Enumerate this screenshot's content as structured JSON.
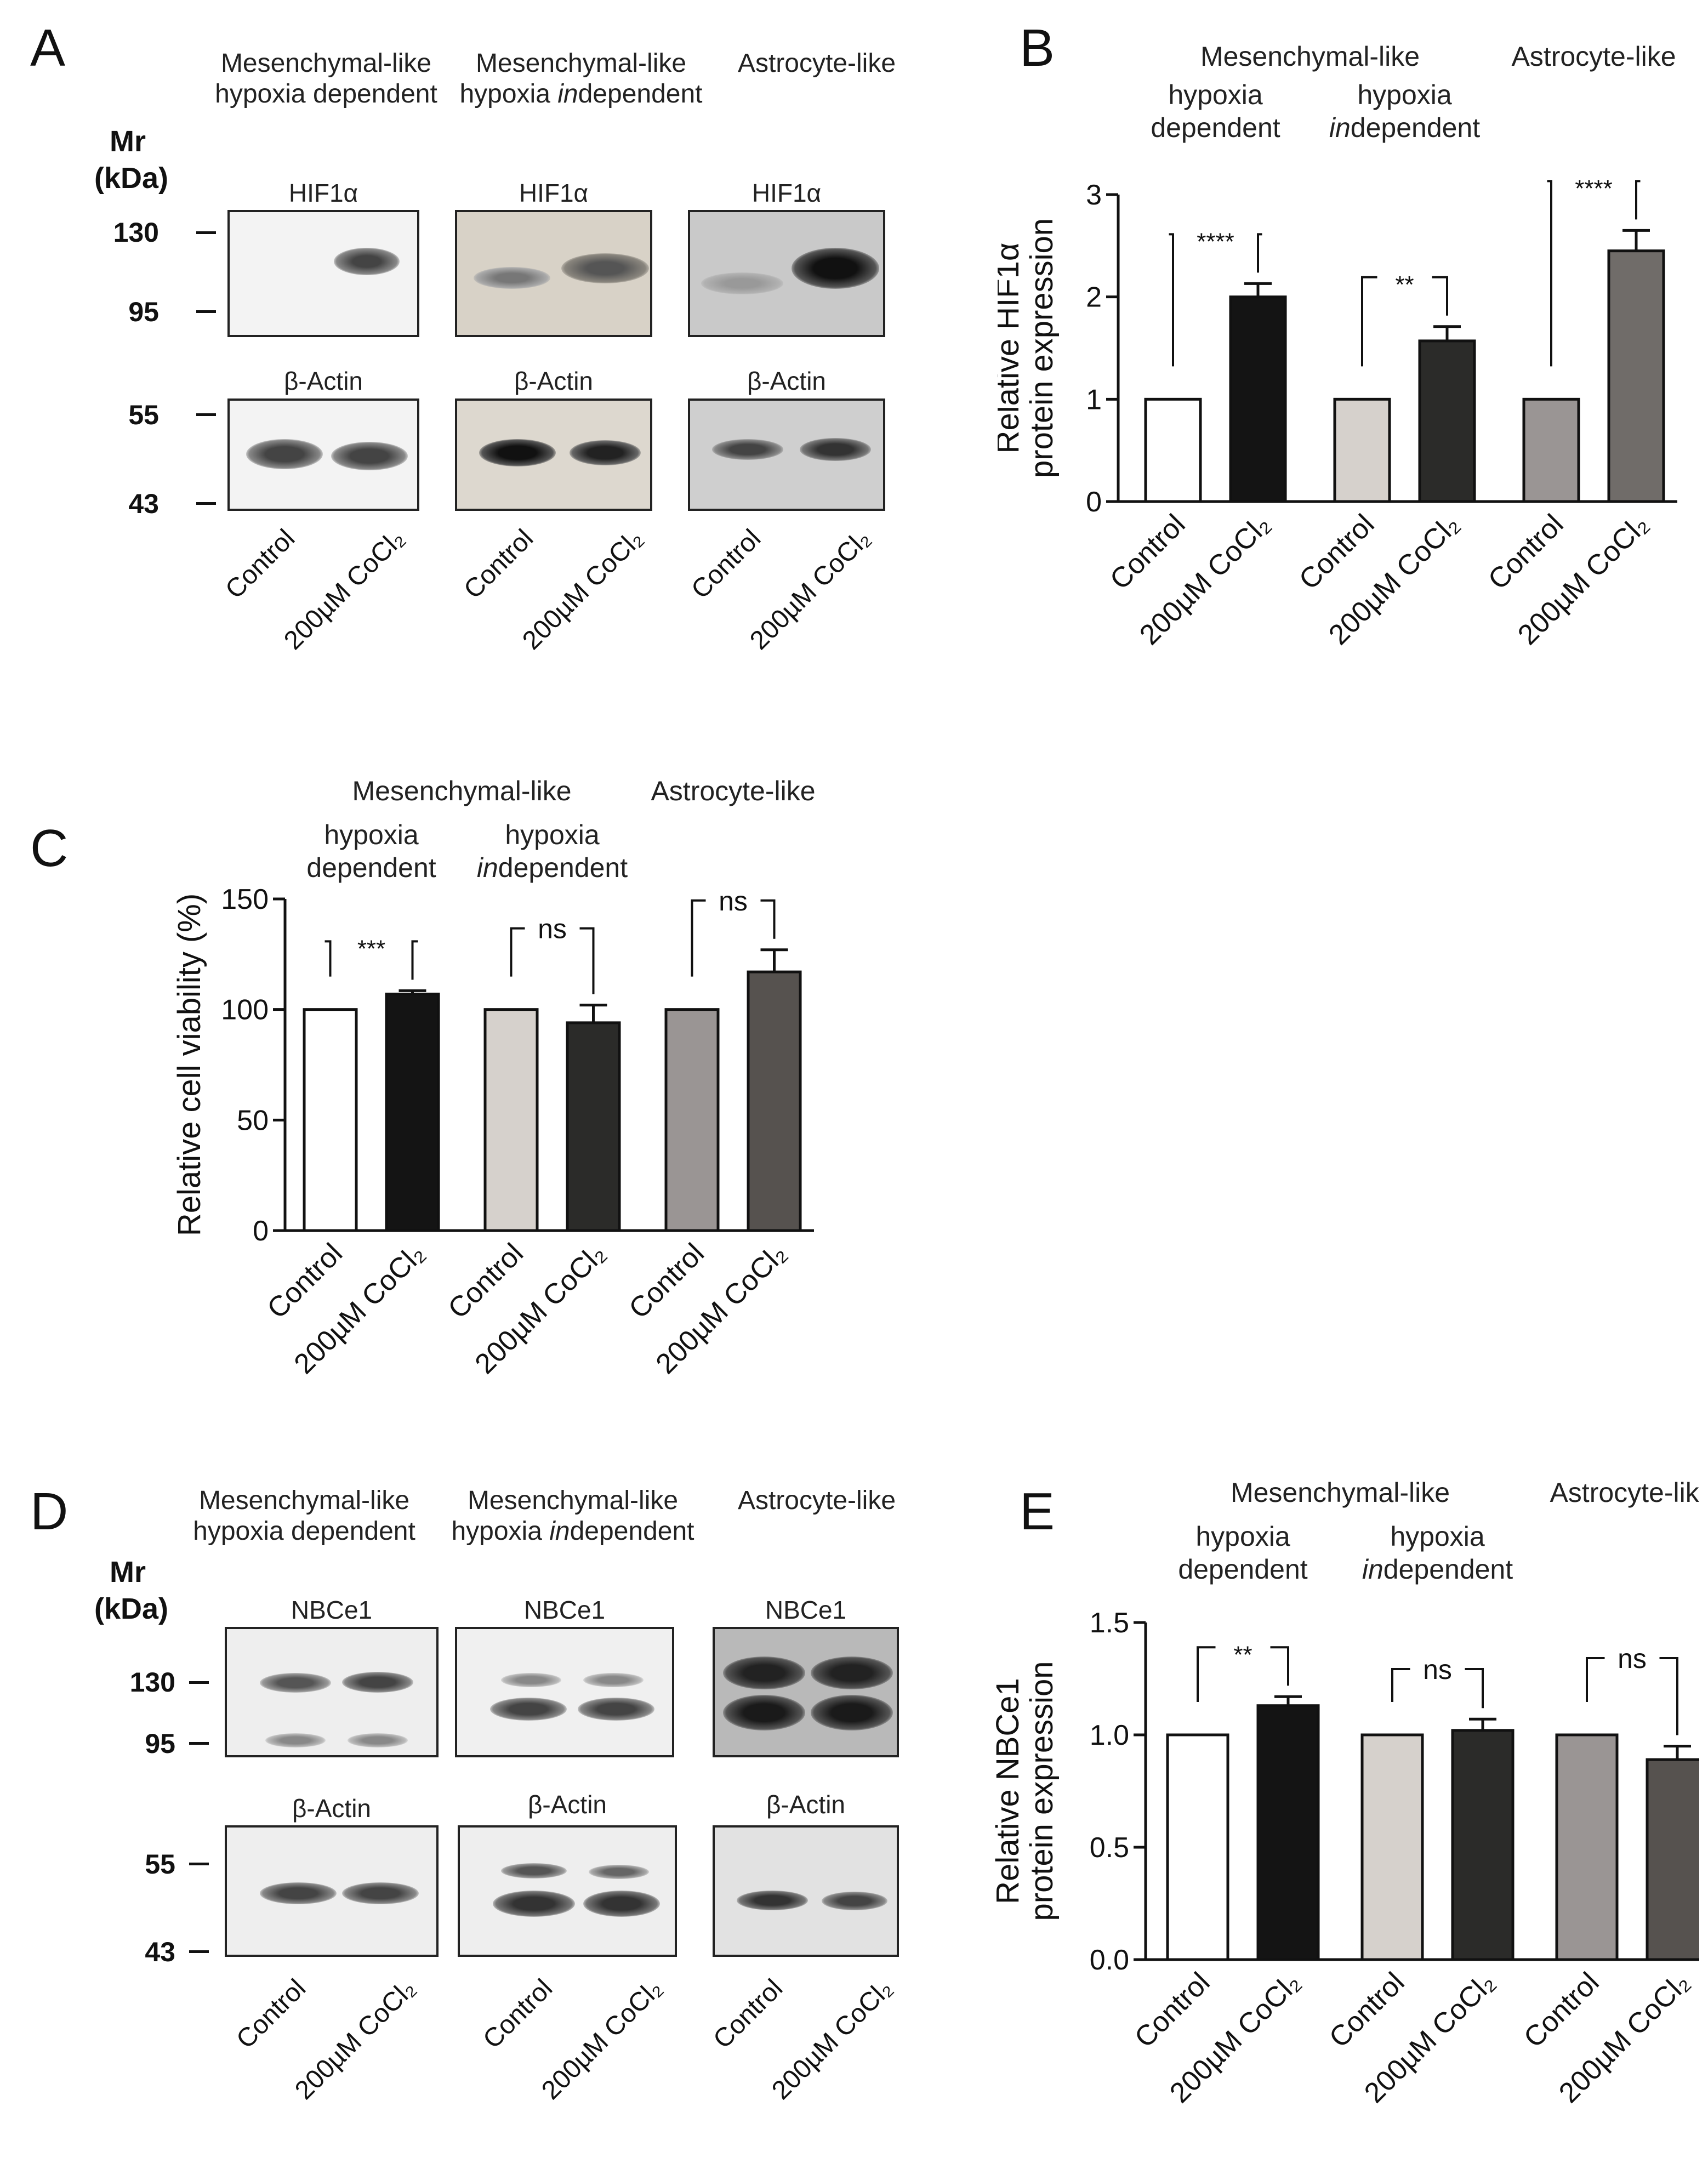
{
  "panels": {
    "A": {
      "letter": "A",
      "groups": [
        {
          "line1": "Mesenchymal-like",
          "line2_pre": "hypoxia dependent",
          "line2_it": "",
          "line2_post": ""
        },
        {
          "line1": "Mesenchymal-like",
          "line2_pre": "hypoxia ",
          "line2_it": "in",
          "line2_post": "dependent"
        },
        {
          "line1": "Astrocyte-like",
          "line2_pre": "",
          "line2_it": "",
          "line2_post": ""
        }
      ],
      "mr_label": "Mr",
      "kda_label": "(kDa)",
      "markers_top": [
        "130",
        "95"
      ],
      "markers_bottom": [
        "55",
        "43"
      ],
      "top_titles": [
        "HIF1α",
        "HIF1α",
        "HIF1α"
      ],
      "bottom_titles": [
        "β-Actin",
        "β-Actin",
        "β-Actin"
      ],
      "lanes": [
        "Control",
        "200µM CoCl₂"
      ]
    },
    "D": {
      "letter": "D",
      "groups": [
        {
          "line1": "Mesenchymal-like",
          "line2_pre": "hypoxia dependent",
          "line2_it": "",
          "line2_post": ""
        },
        {
          "line1": "Mesenchymal-like",
          "line2_pre": "hypoxia ",
          "line2_it": "in",
          "line2_post": "dependent"
        },
        {
          "line1": "Astrocyte-like",
          "line2_pre": "",
          "line2_it": "",
          "line2_post": ""
        }
      ],
      "mr_label": "Mr",
      "kda_label": "(kDa)",
      "markers_top": [
        "130",
        "95"
      ],
      "markers_bottom": [
        "55",
        "43"
      ],
      "top_titles": [
        "NBCe1",
        "NBCe1",
        "NBCe1"
      ],
      "bottom_titles": [
        "β-Actin",
        "β-Actin",
        "β-Actin"
      ],
      "lanes": [
        "Control",
        "200µM CoCl₂"
      ]
    },
    "B": {
      "letter": "B"
    },
    "C": {
      "letter": "C"
    },
    "E": {
      "letter": "E"
    }
  },
  "chart_data": [
    {
      "panel": "B",
      "type": "bar",
      "group_headers": {
        "top": [
          "Mesenchymal-like",
          "Astrocyte-like"
        ],
        "sub": [
          [
            "hypoxia",
            "dependent"
          ],
          [
            "hypoxia",
            "independent"
          ]
        ]
      },
      "categories": [
        "Control",
        "200µM CoCl₂",
        "Control",
        "200µM CoCl₂",
        "Control",
        "200µM CoCl₂"
      ],
      "values": [
        1.0,
        2.0,
        1.0,
        1.57,
        1.0,
        2.45
      ],
      "errors": [
        0,
        0.13,
        0,
        0.14,
        0,
        0.2
      ],
      "colors": [
        "#ffffff",
        "#141414",
        "#d6d1cc",
        "#2b2b29",
        "#9a9594",
        "#706c69"
      ],
      "ylabel": "Relative HIF1α protein expression",
      "ylabel_lines": [
        "Relative HIF1α",
        "protein expression"
      ],
      "ylim": [
        0,
        3
      ],
      "yticks": [
        "0",
        "1",
        "2",
        "3"
      ],
      "significance": [
        "****",
        "**",
        "****"
      ]
    },
    {
      "panel": "C",
      "type": "bar",
      "group_headers": {
        "top": [
          "Mesenchymal-like",
          "Astrocyte-like"
        ],
        "sub": [
          [
            "hypoxia",
            "dependent"
          ],
          [
            "hypoxia",
            "independent"
          ]
        ]
      },
      "categories": [
        "Control",
        "200µM CoCl₂",
        "Control",
        "200µM CoCl₂",
        "Control",
        "200µM CoCl₂"
      ],
      "values": [
        100,
        107,
        100,
        94,
        100,
        117
      ],
      "errors": [
        0,
        1.5,
        0,
        8,
        0,
        10
      ],
      "colors": [
        "#ffffff",
        "#141414",
        "#d6d1cc",
        "#2b2b29",
        "#9a9594",
        "#56524f"
      ],
      "ylabel": "Relative cell viability (%)",
      "ylabel_lines": [
        "Relative cell viability (%)"
      ],
      "ylim": [
        0,
        150
      ],
      "yticks": [
        "0",
        "50",
        "100",
        "150"
      ],
      "significance": [
        "***",
        "ns",
        "ns"
      ]
    },
    {
      "panel": "E",
      "type": "bar",
      "group_headers": {
        "top": [
          "Mesenchymal-like",
          "Astrocyte-like"
        ],
        "sub": [
          [
            "hypoxia",
            "dependent"
          ],
          [
            "hypoxia",
            "independent"
          ]
        ]
      },
      "categories": [
        "Control",
        "200µM CoCl₂",
        "Control",
        "200µM CoCl₂",
        "Control",
        "200µM CoCl₂"
      ],
      "values": [
        1.0,
        1.13,
        1.0,
        1.02,
        1.0,
        0.89
      ],
      "errors": [
        0,
        0.04,
        0,
        0.05,
        0,
        0.06
      ],
      "colors": [
        "#ffffff",
        "#141414",
        "#d6d1cc",
        "#2b2b29",
        "#9a9594",
        "#56524f"
      ],
      "ylabel": "Relative NBCe1 protein expression",
      "ylabel_lines": [
        "Relative NBCe1",
        "protein expression"
      ],
      "ylim": [
        0,
        1.5
      ],
      "yticks": [
        "0.0",
        "0.5",
        "1.0",
        "1.5"
      ],
      "significance": [
        "**",
        "ns",
        "ns"
      ]
    }
  ]
}
